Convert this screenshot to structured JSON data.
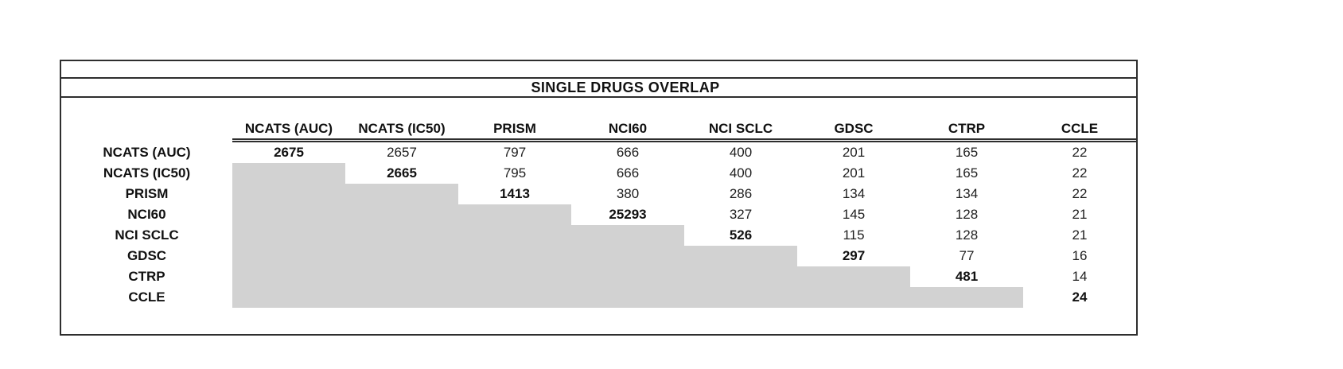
{
  "chart_data": {
    "type": "table",
    "title": "SINGLE DRUGS OVERLAP",
    "columns": [
      "NCATS (AUC)",
      "NCATS (IC50)",
      "PRISM",
      "NCI60",
      "NCI SCLC",
      "GDSC",
      "CTRP",
      "CCLE"
    ],
    "rows": [
      {
        "label": "NCATS (AUC)",
        "values": [
          2675,
          2657,
          797,
          666,
          400,
          201,
          165,
          22
        ]
      },
      {
        "label": "NCATS (IC50)",
        "values": [
          null,
          2665,
          795,
          666,
          400,
          201,
          165,
          22
        ]
      },
      {
        "label": "PRISM",
        "values": [
          null,
          null,
          1413,
          380,
          286,
          134,
          134,
          22
        ]
      },
      {
        "label": "NCI60",
        "values": [
          null,
          null,
          null,
          25293,
          327,
          145,
          128,
          21
        ]
      },
      {
        "label": "NCI SCLC",
        "values": [
          null,
          null,
          null,
          null,
          526,
          115,
          128,
          21
        ]
      },
      {
        "label": "GDSC",
        "values": [
          null,
          null,
          null,
          null,
          null,
          297,
          77,
          16
        ]
      },
      {
        "label": "CTRP",
        "values": [
          null,
          null,
          null,
          null,
          null,
          null,
          481,
          14
        ]
      },
      {
        "label": "CCLE",
        "values": [
          null,
          null,
          null,
          null,
          null,
          null,
          null,
          24
        ]
      }
    ],
    "layout": {
      "bold_diagonal": true,
      "shaded_lower_triangle": true,
      "gridlines": "none-between-cells"
    }
  },
  "colors": {
    "shaded_cell": "#d2d2d2",
    "border": "#2e2e2e",
    "text": "#1f1f1f"
  }
}
